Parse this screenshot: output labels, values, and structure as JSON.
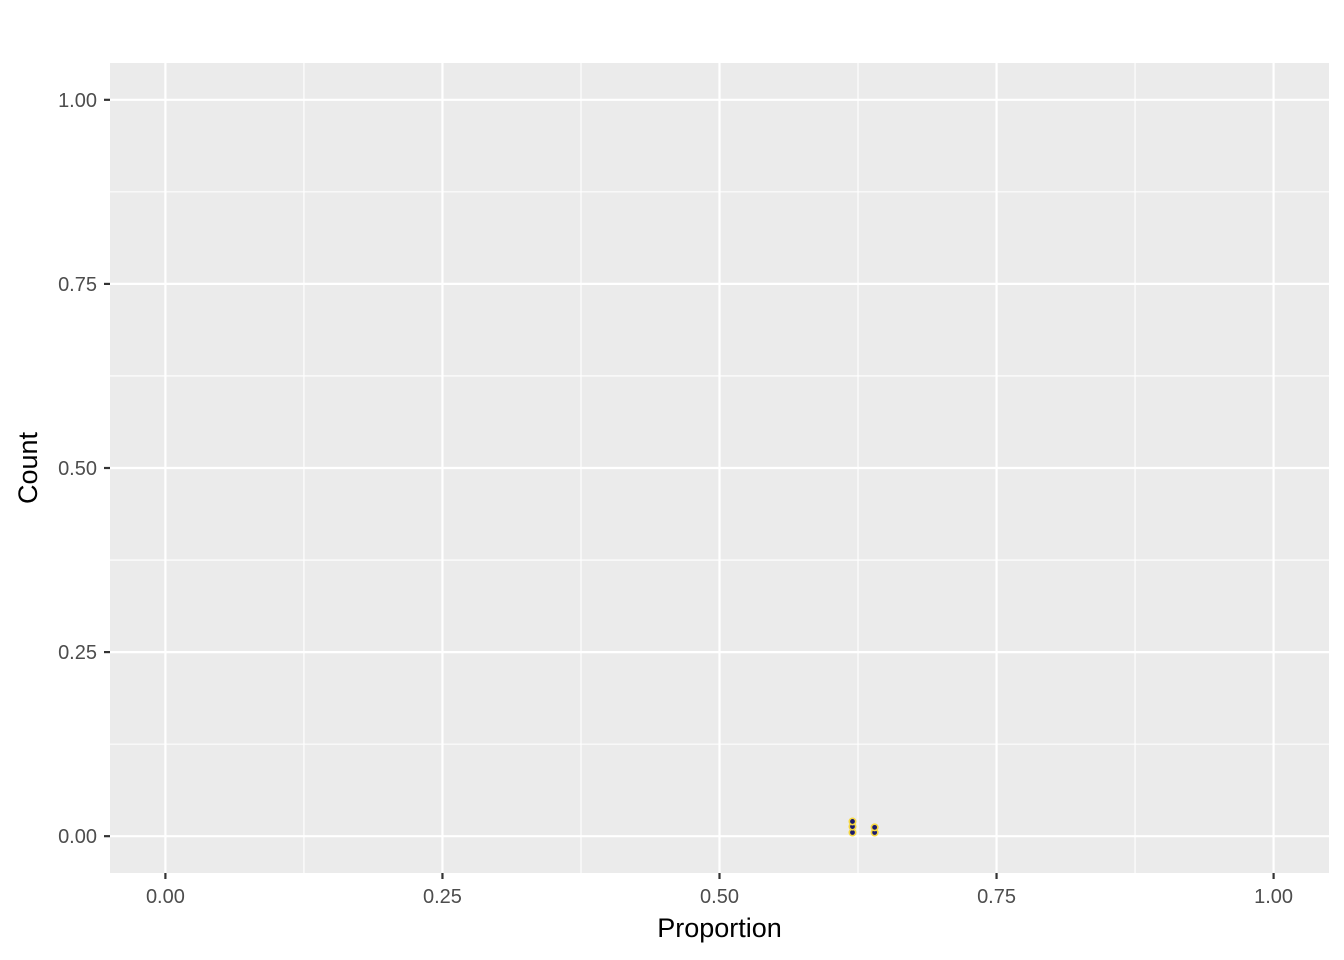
{
  "chart_data": {
    "type": "scatter",
    "xlabel": "Proportion",
    "ylabel": "Count",
    "xlim": [
      -0.05,
      1.05
    ],
    "ylim": [
      -0.05,
      1.05
    ],
    "x_ticks": [
      0,
      0.25,
      0.5,
      0.75,
      1
    ],
    "x_tick_labels": [
      "0.00",
      "0.25",
      "0.50",
      "0.75",
      "1.00"
    ],
    "y_ticks": [
      0,
      0.25,
      0.5,
      0.75,
      1
    ],
    "y_tick_labels": [
      "0.00",
      "0.25",
      "0.50",
      "0.75",
      "1.00"
    ],
    "x_minor_ticks": [
      0.125,
      0.375,
      0.625,
      0.875
    ],
    "y_minor_ticks": [
      0.125,
      0.375,
      0.625,
      0.875
    ],
    "grid": true,
    "colors": {
      "panel_background": "#ebebeb",
      "grid": "#ffffff",
      "point_fill": "#1a1a6e",
      "point_stroke": "#f5d742"
    },
    "points": [
      {
        "x": 0.62,
        "y": 0.005
      },
      {
        "x": 0.62,
        "y": 0.013
      },
      {
        "x": 0.62,
        "y": 0.02
      },
      {
        "x": 0.64,
        "y": 0.005
      },
      {
        "x": 0.64,
        "y": 0.012
      }
    ]
  }
}
